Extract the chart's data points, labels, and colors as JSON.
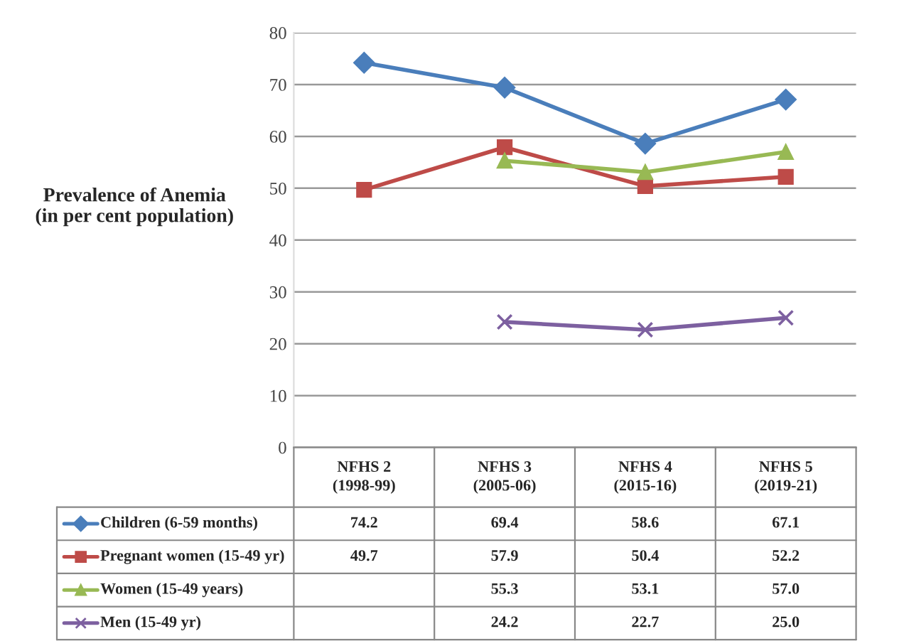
{
  "chart_data": {
    "type": "line",
    "ylabel": "Prevalence of Anemia\n(in per cent population)",
    "categories": [
      "NFHS 2\n(1998-99)",
      "NFHS 3\n(2005-06)",
      "NFHS 4\n(2015-16)",
      "NFHS 5\n(2019-21)"
    ],
    "series": [
      {
        "name": "Children (6-59 months)",
        "color": "#4a7ebb",
        "marker": "diamond",
        "values": [
          74.2,
          69.4,
          58.6,
          67.1
        ],
        "value_labels": [
          "74.2",
          "69.4",
          "58.6",
          "67.1"
        ]
      },
      {
        "name": "Pregnant women (15-49 yr)",
        "color": "#be4b48",
        "marker": "square",
        "values": [
          49.7,
          57.9,
          50.4,
          52.2
        ],
        "value_labels": [
          "49.7",
          "57.9",
          "50.4",
          "52.2"
        ]
      },
      {
        "name": "Women (15-49 years)",
        "color": "#98b954",
        "marker": "triangle",
        "values": [
          null,
          55.3,
          53.1,
          57.0
        ],
        "value_labels": [
          null,
          "55.3",
          "53.1",
          "57.0"
        ]
      },
      {
        "name": "Men (15-49 yr)",
        "color": "#7d60a0",
        "marker": "cross",
        "values": [
          null,
          24.2,
          22.7,
          25.0
        ],
        "value_labels": [
          null,
          "24.2",
          "22.7",
          "25.0"
        ]
      }
    ],
    "ylim": [
      0,
      80
    ],
    "yticks": [
      0,
      10,
      20,
      30,
      40,
      50,
      60,
      70,
      80
    ],
    "grid": "y",
    "legend": "bottom",
    "line_style": "solid"
  }
}
